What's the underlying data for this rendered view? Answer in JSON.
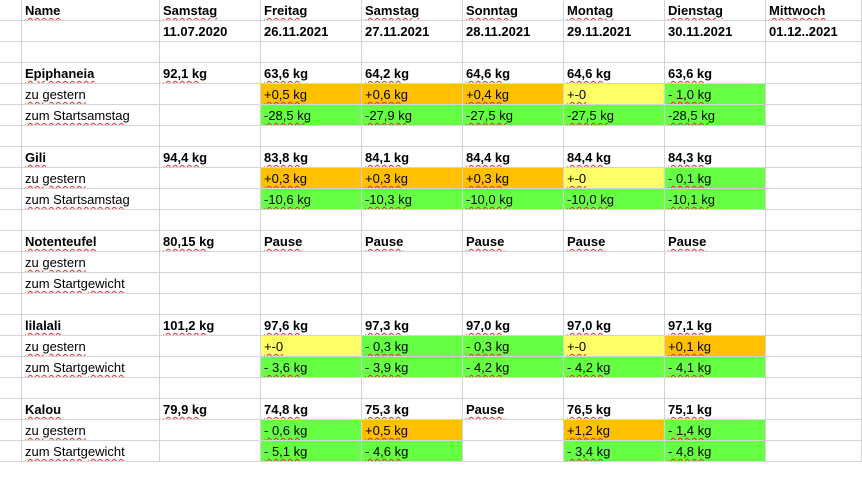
{
  "colors": {
    "green": "#66ff44",
    "orange": "#ffc000",
    "yellow": "#ffff66",
    "grid": "#d4d4d4"
  },
  "header": {
    "name": "Name",
    "cols": [
      {
        "day": "Samstag",
        "date": "11.07.2020"
      },
      {
        "day": "Freitag",
        "date": "26.11.2021"
      },
      {
        "day": "Samstag",
        "date": "27.11.2021"
      },
      {
        "day": "Sonntag",
        "date": "28.11.2021"
      },
      {
        "day": "Montag",
        "date": "29.11.2021"
      },
      {
        "day": "Dienstag",
        "date": "30.11.2021"
      },
      {
        "day": "Mittwoch",
        "date": "01.12..2021"
      }
    ]
  },
  "groups": [
    {
      "name": "Epiphaneia",
      "start": "92,1 kg",
      "weights": [
        "63,6 kg",
        "64,2 kg",
        "64,6 kg",
        "64,6 kg",
        "63,6 kg",
        ""
      ],
      "diff_label": "zu gestern",
      "diff": [
        {
          "v": "+0,5 kg",
          "c": "orange"
        },
        {
          "v": "+0,6 kg",
          "c": "orange"
        },
        {
          "v": "+0,4 kg",
          "c": "orange"
        },
        {
          "v": "+-0",
          "c": "yellow"
        },
        {
          "v": "- 1,0 kg",
          "c": "green"
        },
        {
          "v": "",
          "c": ""
        }
      ],
      "total_label": "zum Startsamstag",
      "total": [
        {
          "v": "-28,5 kg",
          "c": "green"
        },
        {
          "v": "-27,9 kg",
          "c": "green"
        },
        {
          "v": "-27,5 kg",
          "c": "green"
        },
        {
          "v": "-27,5 kg",
          "c": "green"
        },
        {
          "v": "-28,5 kg",
          "c": "green"
        },
        {
          "v": "",
          "c": ""
        }
      ]
    },
    {
      "name": "Gili",
      "start": "94,4 kg",
      "weights": [
        "83,8 kg",
        "84,1 kg",
        "84,4 kg",
        "84,4 kg",
        "84,3 kg",
        ""
      ],
      "diff_label": "zu gestern",
      "diff": [
        {
          "v": "+0,3 kg",
          "c": "orange"
        },
        {
          "v": "+0,3 kg",
          "c": "orange"
        },
        {
          "v": "+0,3 kg",
          "c": "orange"
        },
        {
          "v": "+-0",
          "c": "yellow"
        },
        {
          "v": "- 0,1 kg",
          "c": "green"
        },
        {
          "v": "",
          "c": ""
        }
      ],
      "total_label": "zum Startsamstag",
      "total": [
        {
          "v": "-10,6 kg",
          "c": "green"
        },
        {
          "v": "-10,3 kg",
          "c": "green"
        },
        {
          "v": "-10,0 kg",
          "c": "green"
        },
        {
          "v": "-10,0 kg",
          "c": "green"
        },
        {
          "v": "-10,1 kg",
          "c": "green"
        },
        {
          "v": "",
          "c": ""
        }
      ]
    },
    {
      "name": "Notenteufel",
      "start": "80,15 kg",
      "weights": [
        "Pause",
        "Pause",
        "Pause",
        "Pause",
        "Pause",
        ""
      ],
      "diff_label": "zu gestern",
      "diff": [
        {
          "v": "",
          "c": ""
        },
        {
          "v": "",
          "c": ""
        },
        {
          "v": "",
          "c": ""
        },
        {
          "v": "",
          "c": ""
        },
        {
          "v": "",
          "c": ""
        },
        {
          "v": "",
          "c": ""
        }
      ],
      "total_label": "zum Startgewicht",
      "total": [
        {
          "v": "",
          "c": ""
        },
        {
          "v": "",
          "c": ""
        },
        {
          "v": "",
          "c": ""
        },
        {
          "v": "",
          "c": ""
        },
        {
          "v": "",
          "c": ""
        },
        {
          "v": "",
          "c": ""
        }
      ]
    },
    {
      "name": "lilalali",
      "start": "101,2 kg",
      "weights": [
        "97,6 kg",
        "97,3 kg",
        "97,0 kg",
        "97,0 kg",
        "97,1 kg",
        ""
      ],
      "diff_label": "zu gestern",
      "diff": [
        {
          "v": "+-0",
          "c": "yellow"
        },
        {
          "v": "- 0,3 kg",
          "c": "green"
        },
        {
          "v": "- 0,3 kg",
          "c": "green"
        },
        {
          "v": "+-0",
          "c": "yellow"
        },
        {
          "v": "+0,1 kg",
          "c": "orange"
        },
        {
          "v": "",
          "c": ""
        }
      ],
      "total_label": "zum Startgewicht",
      "total": [
        {
          "v": "- 3,6 kg",
          "c": "green"
        },
        {
          "v": "- 3,9 kg",
          "c": "green"
        },
        {
          "v": "- 4,2 kg",
          "c": "green"
        },
        {
          "v": "- 4,2 kg",
          "c": "green"
        },
        {
          "v": "- 4,1 kg",
          "c": "green"
        },
        {
          "v": "",
          "c": ""
        }
      ]
    },
    {
      "name": "Kalou",
      "start": "79,9 kg",
      "weights": [
        "74,8 kg",
        "75,3 kg",
        "Pause",
        "76,5 kg",
        "75,1 kg",
        ""
      ],
      "diff_label": "zu gestern",
      "diff": [
        {
          "v": "- 0,6 kg",
          "c": "green"
        },
        {
          "v": "+0,5 kg",
          "c": "orange"
        },
        {
          "v": "",
          "c": ""
        },
        {
          "v": "+1,2 kg",
          "c": "orange"
        },
        {
          "v": "- 1,4 kg",
          "c": "green"
        },
        {
          "v": "",
          "c": ""
        }
      ],
      "total_label": "zum Startgewicht",
      "total": [
        {
          "v": "- 5,1 kg",
          "c": "green"
        },
        {
          "v": "- 4,6 kg",
          "c": "green"
        },
        {
          "v": "",
          "c": ""
        },
        {
          "v": "- 3,4 kg",
          "c": "green"
        },
        {
          "v": "- 4,8 kg",
          "c": "green"
        },
        {
          "v": "",
          "c": ""
        }
      ]
    }
  ]
}
